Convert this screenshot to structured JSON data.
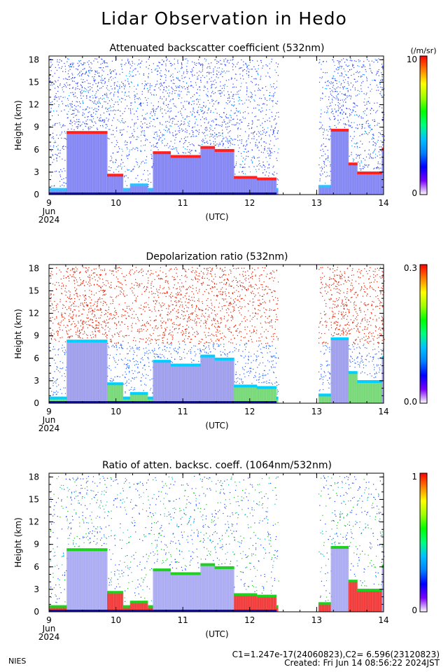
{
  "title": "Lidar Observation in Hedo",
  "chart_data": [
    {
      "type": "heatmap",
      "title": "Attenuated backscatter coefficient (532nm)",
      "xlabel": "(UTC)",
      "ylabel": "Height (km)",
      "x_ticks": [
        "9",
        "10",
        "11",
        "12",
        "13",
        "14"
      ],
      "x_date_label": [
        "Jun",
        "2024"
      ],
      "x_range": [
        9,
        14
      ],
      "y_ticks": [
        "0",
        "3",
        "6",
        "9",
        "12",
        "15",
        "18"
      ],
      "ylim": [
        0,
        18.5
      ],
      "colorbar": {
        "min_label": "0",
        "max_label": "10",
        "unit": "(/m/sr)"
      },
      "data_gap": [
        12.4,
        13.0
      ],
      "cloud_layers": [
        {
          "start": 9.3,
          "end": 9.85,
          "base_km": 0,
          "top_km": 8.2
        },
        {
          "start": 10.55,
          "end": 11.7,
          "base_km": 0,
          "top_km": 6.0
        },
        {
          "start": 11.95,
          "end": 12.35,
          "base_km": 0,
          "top_km": 3.0
        },
        {
          "start": 13.2,
          "end": 13.45,
          "base_km": 0,
          "top_km": 8.5
        },
        {
          "start": 13.55,
          "end": 13.95,
          "base_km": 0,
          "top_km": 2.5
        }
      ]
    },
    {
      "type": "heatmap",
      "title": "Depolarization ratio (532nm)",
      "xlabel": "(UTC)",
      "ylabel": "Height (km)",
      "x_ticks": [
        "9",
        "10",
        "11",
        "12",
        "13",
        "14"
      ],
      "x_date_label": [
        "Jun",
        "2024"
      ],
      "x_range": [
        9,
        14
      ],
      "y_ticks": [
        "0",
        "3",
        "6",
        "9",
        "12",
        "15",
        "18"
      ],
      "ylim": [
        0,
        18.5
      ],
      "colorbar": {
        "min_label": "0.0",
        "max_label": "0.3",
        "unit": ""
      },
      "data_gap": [
        12.4,
        13.0
      ]
    },
    {
      "type": "heatmap",
      "title": "Ratio of atten. backsc. coeff. (1064nm/532nm)",
      "xlabel": "(UTC)",
      "ylabel": "Height (km)",
      "x_ticks": [
        "9",
        "10",
        "11",
        "12",
        "13",
        "14"
      ],
      "x_date_label": [
        "Jun",
        "2024"
      ],
      "x_range": [
        9,
        14
      ],
      "y_ticks": [
        "0",
        "3",
        "6",
        "9",
        "12",
        "15",
        "18"
      ],
      "ylim": [
        0,
        18.5
      ],
      "colorbar": {
        "min_label": "0",
        "max_label": "1",
        "unit": ""
      },
      "data_gap": [
        12.4,
        13.0
      ]
    }
  ],
  "footer": {
    "org": "NIES",
    "constants": "C1=1.247e-17(24060823),C2= 6.596(23120823)",
    "created": "Created: Fri Jun 14 08:56:22 2024JST"
  }
}
